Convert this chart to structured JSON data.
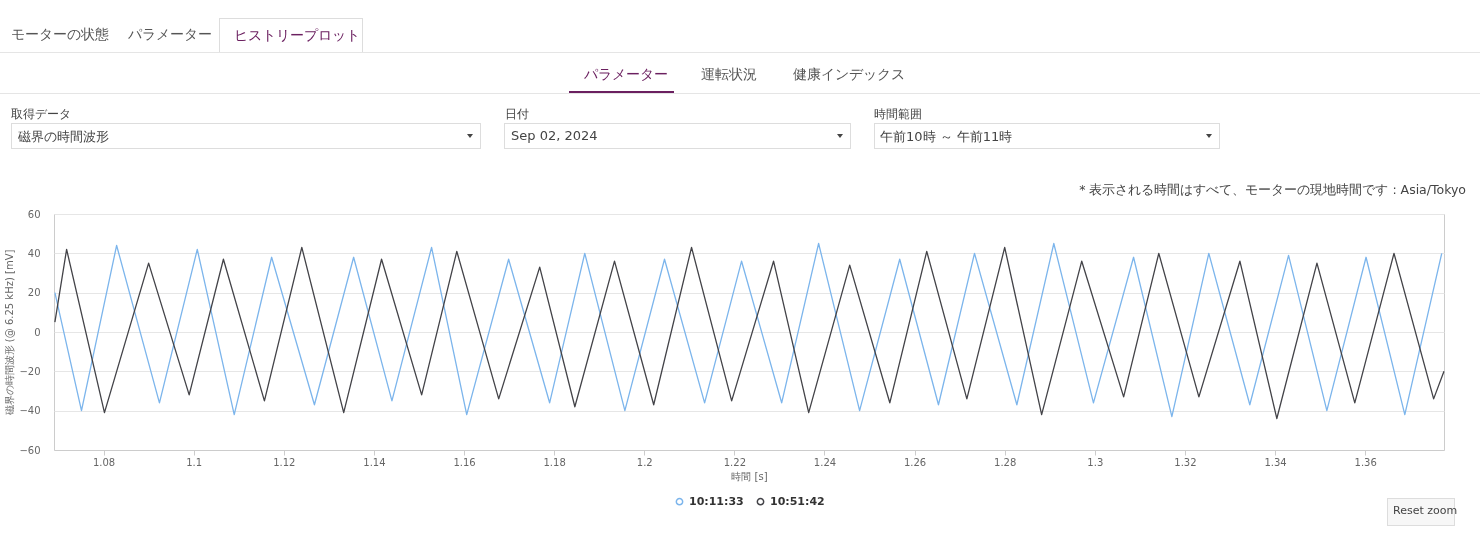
{
  "chart_data": {
    "type": "line",
    "xlabel": "時間 [s]",
    "ylabel": "磁界の時間波形 (@ 6.25 kHz) [mV]",
    "xlim": [
      1.069,
      1.3775
    ],
    "xticks": [
      1.08,
      1.1,
      1.12,
      1.14,
      1.16,
      1.18,
      1.2,
      1.22,
      1.24,
      1.26,
      1.28,
      1.3,
      1.32,
      1.34,
      1.36
    ],
    "ylim": [
      -60,
      60
    ],
    "yticks": [
      -60,
      -40,
      -20,
      0,
      20,
      40,
      60
    ],
    "grid": "y",
    "legend": "bottom",
    "series": [
      {
        "name": "10:11:33",
        "color": "#7cb5ec",
        "x": [
          1.0692,
          1.0751,
          1.0829,
          1.0924,
          1.1008,
          1.109,
          1.1173,
          1.1268,
          1.1355,
          1.144,
          1.1528,
          1.1606,
          1.1699,
          1.179,
          1.1868,
          1.1957,
          1.2045,
          1.2134,
          1.2216,
          1.2305,
          1.2387,
          1.2478,
          1.2567,
          1.2653,
          1.2733,
          1.2827,
          1.2909,
          1.2997,
          1.3086,
          1.3171,
          1.3253,
          1.3344,
          1.343,
          1.3515,
          1.3602,
          1.3688,
          1.377
        ],
        "values": [
          20,
          -40,
          44,
          -36,
          42,
          -42,
          38,
          -37,
          38,
          -35,
          43,
          -42,
          37,
          -36,
          40,
          -40,
          37,
          -36,
          36,
          -36,
          45,
          -40,
          37,
          -37,
          40,
          -37,
          45,
          -36,
          38,
          -43,
          40,
          -37,
          39,
          -40,
          38,
          -42,
          40
        ]
      },
      {
        "name": "10:51:42",
        "color": "#434348",
        "x": [
          1.0692,
          1.0718,
          1.0802,
          1.09,
          1.099,
          1.1066,
          1.1157,
          1.124,
          1.1333,
          1.1417,
          1.1506,
          1.1584,
          1.1677,
          1.1768,
          1.1846,
          1.1934,
          1.2021,
          1.2105,
          1.2194,
          1.2287,
          1.2365,
          1.2456,
          1.2545,
          1.2627,
          1.2716,
          1.28,
          1.2882,
          1.2971,
          1.3064,
          1.3142,
          1.3231,
          1.3322,
          1.3404,
          1.3493,
          1.3577,
          1.3664,
          1.3752,
          1.3775
        ],
        "values": [
          5,
          42,
          -41,
          35,
          -32,
          37,
          -35,
          43,
          -41,
          37,
          -32,
          41,
          -34,
          33,
          -38,
          36,
          -37,
          43,
          -35,
          36,
          -41,
          34,
          -36,
          41,
          -34,
          43,
          -42,
          36,
          -33,
          40,
          -33,
          36,
          -44,
          35,
          -36,
          40,
          -34,
          -20
        ]
      }
    ],
    "annotations": [
      "モーターの状態",
      "パラメーター",
      "ヒストリープロット",
      "パラメーター",
      "運転状況",
      "健康インデックス",
      "取得データ",
      "磁界の時間波形",
      "日付",
      "Sep 02, 2024",
      "時間範囲",
      "午前10時 ～ 午前11時",
      "* 表示される時間はすべて、モーターの現地時間です : Asia/Tokyo",
      "Reset zoom"
    ]
  }
}
